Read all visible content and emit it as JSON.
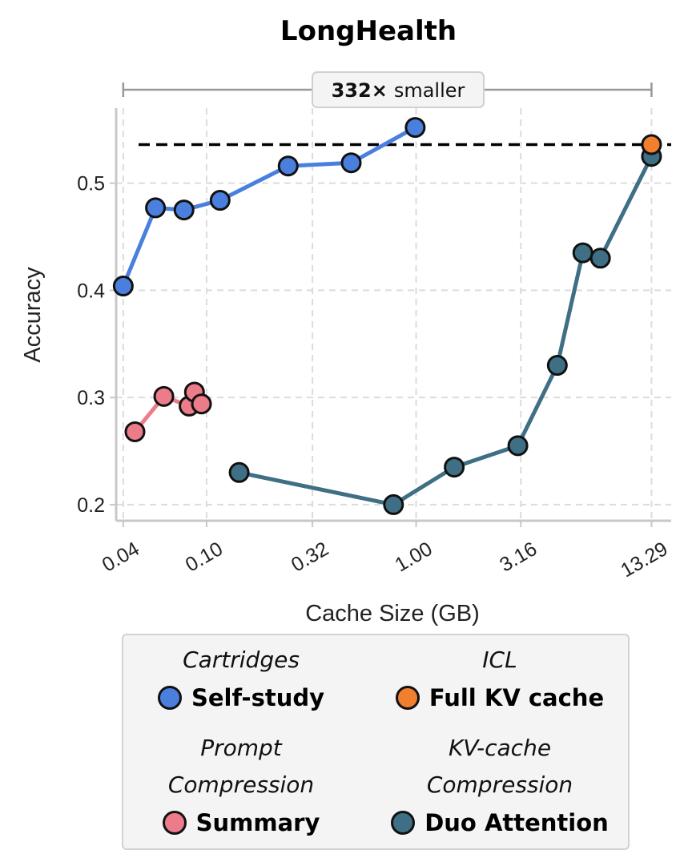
{
  "chart_data": {
    "type": "scatter",
    "title": "LongHealth",
    "xlabel": "Cache Size (GB)",
    "ylabel": "Accuracy",
    "xscale": "log",
    "xlim": [
      0.037,
      16.5
    ],
    "ylim": [
      0.185,
      0.57
    ],
    "xticks": [
      0.04,
      0.1,
      0.32,
      1.0,
      3.16,
      13.29
    ],
    "xtick_labels": [
      "0.04",
      "0.10",
      "0.32",
      "1.00",
      "3.16",
      "13.29"
    ],
    "yticks": [
      0.2,
      0.3,
      0.4,
      0.5
    ],
    "ytick_labels": [
      "0.2",
      "0.3",
      "0.4",
      "0.5"
    ],
    "grid": true,
    "reference_line": {
      "y": 0.536,
      "style": "dashed",
      "color": "#000000"
    },
    "annotation": {
      "bold": "332×",
      "text": "smaller",
      "x_start": 0.04,
      "x_end": 13.29
    },
    "series": [
      {
        "name": "Self-study",
        "group": "Cartridges",
        "color": "#4a7fde",
        "connected": true,
        "points": [
          {
            "x": 0.04,
            "y": 0.404
          },
          {
            "x": 0.057,
            "y": 0.477
          },
          {
            "x": 0.078,
            "y": 0.475
          },
          {
            "x": 0.116,
            "y": 0.484
          },
          {
            "x": 0.245,
            "y": 0.516
          },
          {
            "x": 0.49,
            "y": 0.519
          },
          {
            "x": 0.99,
            "y": 0.552
          }
        ]
      },
      {
        "name": "Summary",
        "group": "Prompt Compression",
        "color": "#ec7c8a",
        "connected": true,
        "points": [
          {
            "x": 0.0455,
            "y": 0.268
          },
          {
            "x": 0.0625,
            "y": 0.301
          },
          {
            "x": 0.0825,
            "y": 0.292
          },
          {
            "x": 0.0875,
            "y": 0.305
          },
          {
            "x": 0.0945,
            "y": 0.294
          }
        ]
      },
      {
        "name": "Duo Attention",
        "group": "KV-cache Compression",
        "color": "#3f6f85",
        "connected": true,
        "points": [
          {
            "x": 0.143,
            "y": 0.23
          },
          {
            "x": 0.78,
            "y": 0.2
          },
          {
            "x": 1.52,
            "y": 0.235
          },
          {
            "x": 3.06,
            "y": 0.255
          },
          {
            "x": 4.72,
            "y": 0.33
          },
          {
            "x": 6.25,
            "y": 0.435
          },
          {
            "x": 7.58,
            "y": 0.43
          },
          {
            "x": 13.29,
            "y": 0.525
          }
        ]
      },
      {
        "name": "Full KV cache",
        "group": "ICL",
        "color": "#f07f2e",
        "connected": false,
        "points": [
          {
            "x": 13.29,
            "y": 0.536
          }
        ]
      }
    ],
    "legend": {
      "placement": "bottom",
      "groups": [
        {
          "title_lines": [
            "Cartridges"
          ],
          "label": "Self-study",
          "color": "#4a7fde"
        },
        {
          "title_lines": [
            "ICL"
          ],
          "label": "Full KV cache",
          "color": "#f07f2e"
        },
        {
          "title_lines": [
            "Prompt",
            "Compression"
          ],
          "label": "Summary",
          "color": "#ec7c8a"
        },
        {
          "title_lines": [
            "KV-cache",
            "Compression"
          ],
          "label": "Duo Attention",
          "color": "#3f6f85"
        }
      ]
    }
  }
}
